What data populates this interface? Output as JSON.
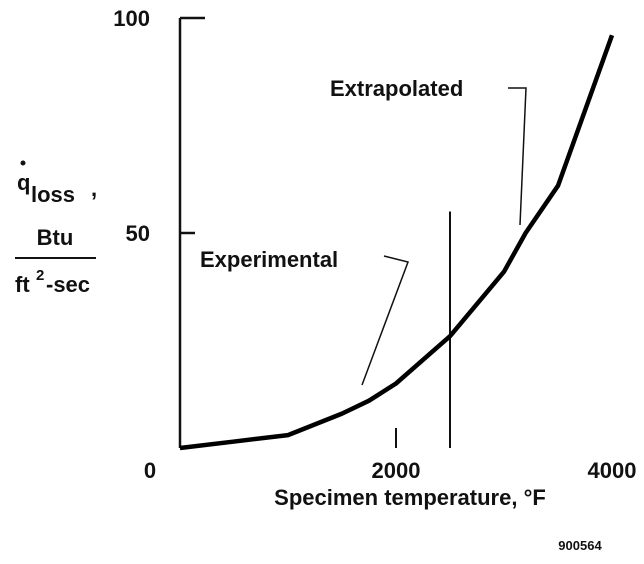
{
  "chart_data": {
    "type": "line",
    "x": [
      0,
      500,
      1000,
      1500,
      1750,
      2000,
      2500,
      3000,
      3200,
      3500,
      4000
    ],
    "series": [
      {
        "color": "#000000",
        "values": [
          0,
          1.5,
          3,
          8,
          11,
          15,
          26,
          41,
          50,
          61,
          96
        ]
      }
    ],
    "xlim": [
      0,
      4000
    ],
    "xticks": [
      0,
      2000,
      4000
    ],
    "ylim": [
      0,
      100
    ],
    "yticks": [
      0,
      50,
      100
    ],
    "xlabel": "Specimen temperature, °F",
    "ylabel": {
      "symbol": "q",
      "subscript": "loss",
      "separator": ",",
      "numerator": "Btu",
      "denominator": "ft",
      "exponent": "2",
      "denominator_rest": "-sec"
    },
    "reference_line": {
      "x": 2500,
      "top": 55
    },
    "annotations": [
      "Extrapolated",
      "Experimental"
    ],
    "figure_number": "900564"
  }
}
